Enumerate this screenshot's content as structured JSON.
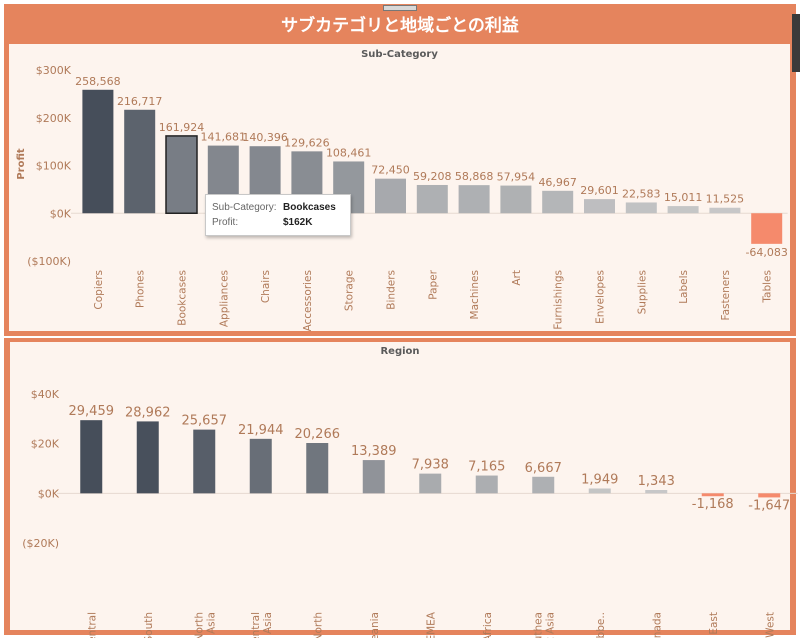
{
  "title": "サブカテゴリと地域ごとの利益",
  "colors": {
    "frame": "#e5845d",
    "panel_bg": "#fdf4ee",
    "negative": "#f58a6c",
    "text": "#b07a59"
  },
  "chart_data": [
    {
      "type": "bar",
      "title": "Sub-Category",
      "ylabel": "Profit",
      "ylim": [
        -100000,
        300000
      ],
      "yticks": [
        "$300K",
        "$200K",
        "$100K",
        "$0K",
        "($100K)"
      ],
      "categories": [
        "Copiers",
        "Phones",
        "Bookcases",
        "Appliances",
        "Chairs",
        "Accessories",
        "Storage",
        "Binders",
        "Paper",
        "Machines",
        "Art",
        "Furnishings",
        "Envelopes",
        "Supplies",
        "Labels",
        "Fasteners",
        "Tables"
      ],
      "values": [
        258568,
        216717,
        161924,
        141681,
        140396,
        129626,
        108461,
        72450,
        59208,
        58868,
        57954,
        46967,
        29601,
        22583,
        15011,
        11525,
        -64083
      ],
      "data_labels": [
        "258,568",
        "216,717",
        "161,924",
        "141,681",
        "140,396",
        "129,626",
        "108,461",
        "72,450",
        "59,208",
        "58,868",
        "57,954",
        "46,967",
        "29,601",
        "22,583",
        "15,011",
        "11,525",
        "-64,083"
      ],
      "highlighted": "Bookcases"
    },
    {
      "type": "bar",
      "title": "Region",
      "ylim": [
        -20000,
        40000
      ],
      "yticks": [
        "$40K",
        "$20K",
        "$0K",
        "($20K)"
      ],
      "categories": [
        [
          "Central"
        ],
        [
          "South"
        ],
        [
          "North",
          "Asia"
        ],
        [
          "Central",
          "Asia"
        ],
        [
          "North"
        ],
        [
          "Oceania"
        ],
        [
          "EMEA"
        ],
        [
          "Africa"
        ],
        [
          "Southea",
          "st Asia"
        ],
        [
          "Caribbe.."
        ],
        [
          "Canada"
        ],
        [
          "East"
        ],
        [
          "West"
        ]
      ],
      "values": [
        29459,
        28962,
        25657,
        21944,
        20266,
        13389,
        7938,
        7165,
        6667,
        1949,
        1343,
        -1168,
        -1647
      ],
      "data_labels": [
        "29,459",
        "28,962",
        "25,657",
        "21,944",
        "20,266",
        "13,389",
        "7,938",
        "7,165",
        "6,667",
        "1,949",
        "1,343",
        "-1,168",
        "-1,647"
      ]
    }
  ],
  "tooltip": {
    "key1": "Sub-Category:",
    "val1": "Bookcases",
    "key2": "Profit:",
    "val2": "$162K"
  }
}
